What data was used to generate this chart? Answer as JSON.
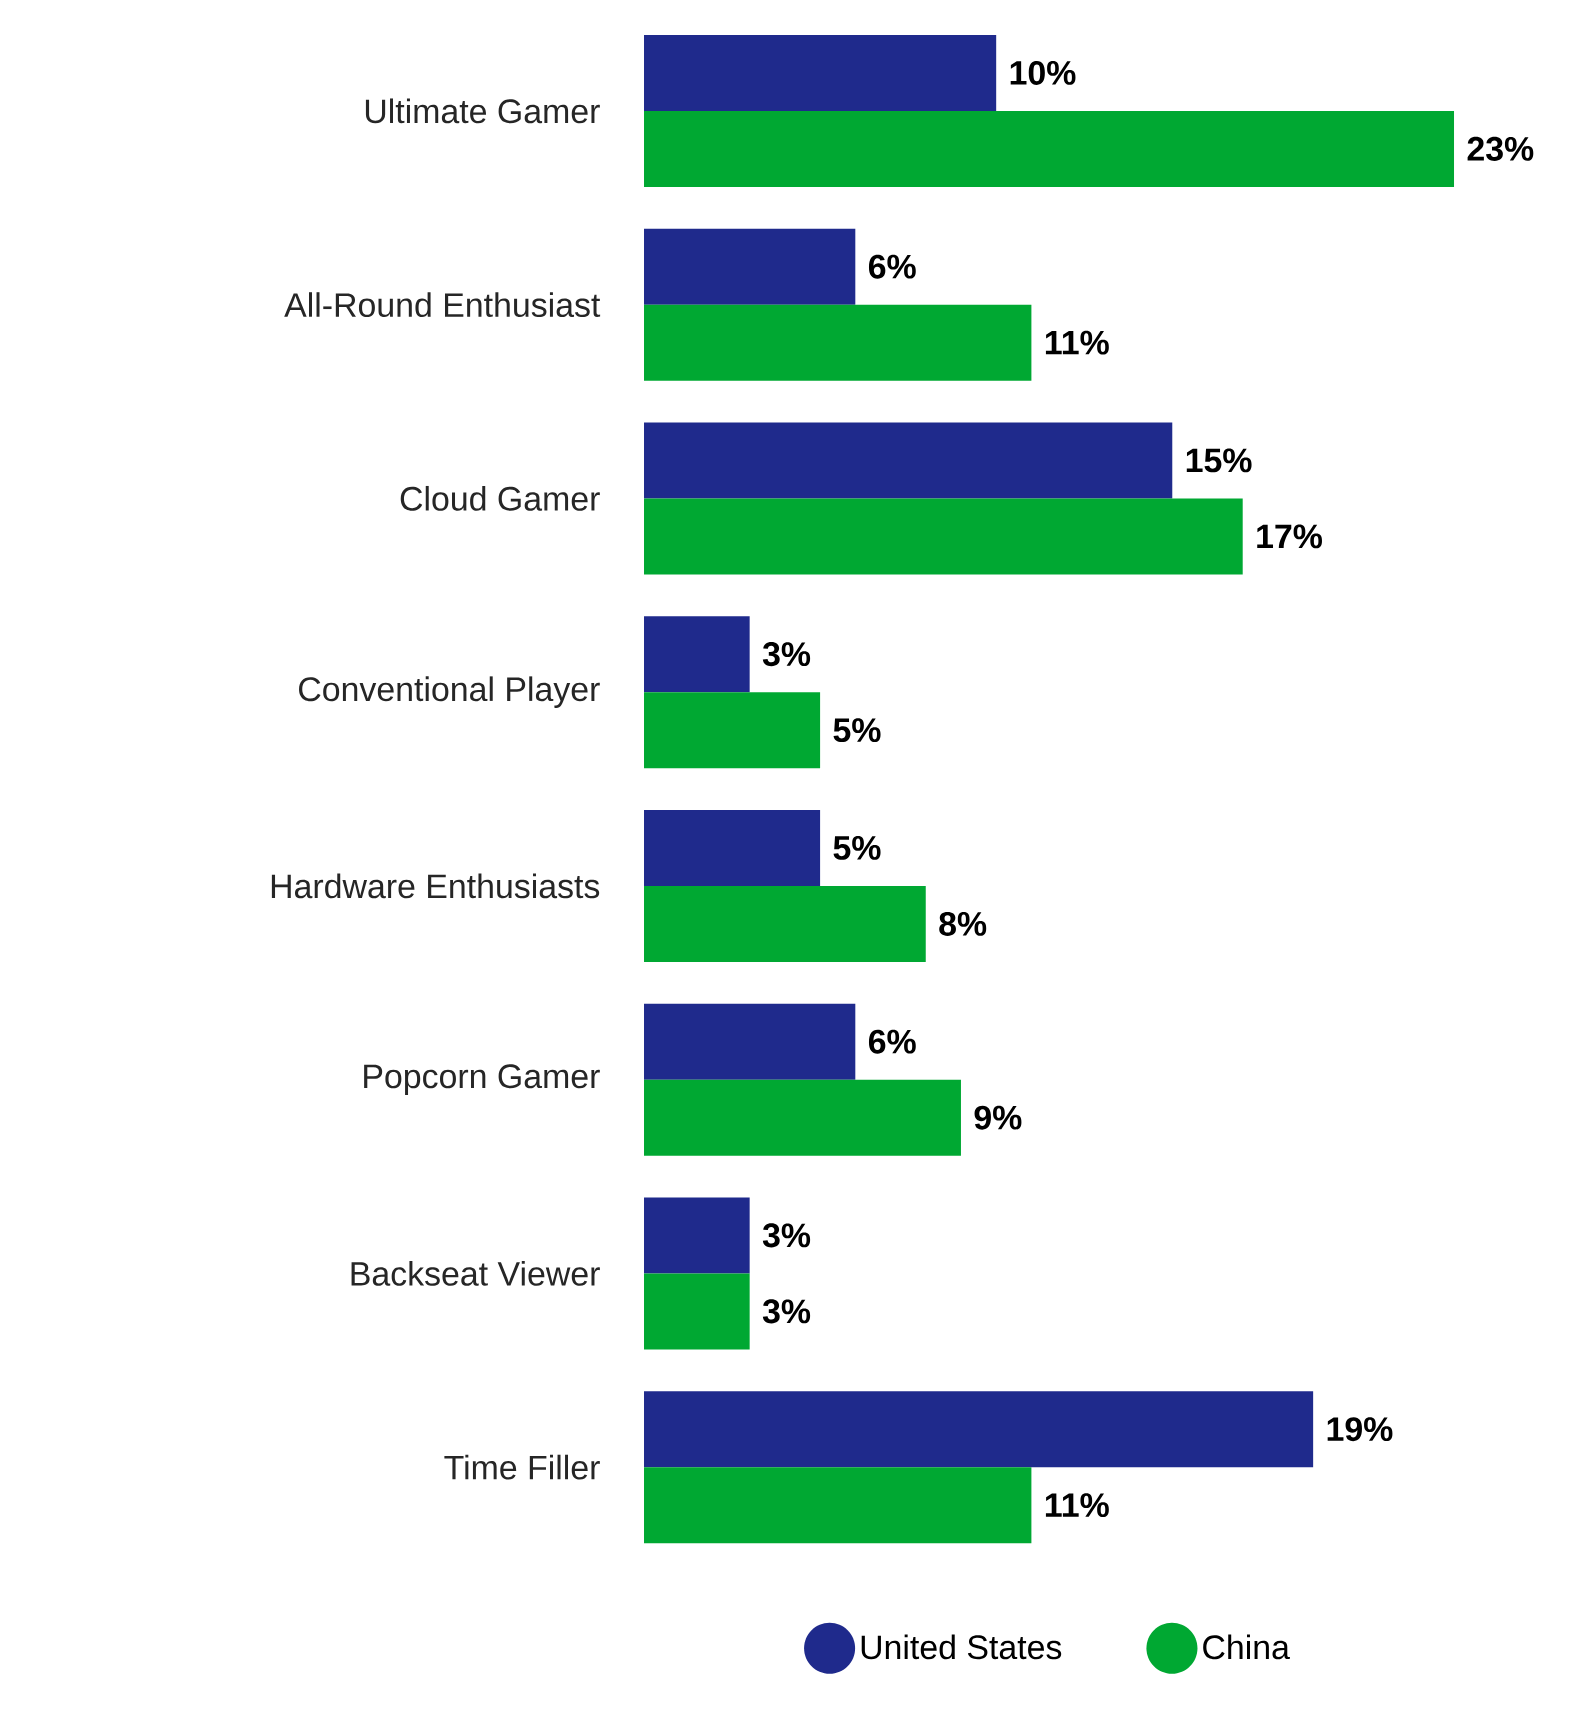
{
  "chart_data": {
    "type": "bar",
    "orientation": "horizontal",
    "categories": [
      "Ultimate Gamer",
      "All-Round Enthusiast",
      "Cloud Gamer",
      "Conventional Player",
      "Hardware Enthusiasts",
      "Popcorn Gamer",
      "Backseat Viewer",
      "Time Filler"
    ],
    "series": [
      {
        "name": "United States",
        "color": "#1f2a8c",
        "values": [
          10,
          6,
          15,
          3,
          5,
          6,
          3,
          19
        ],
        "value_labels": [
          "10%",
          "6%",
          "15%",
          "3%",
          "5%",
          "6%",
          "3%",
          "19%"
        ]
      },
      {
        "name": "China",
        "color": "#00a832",
        "values": [
          23,
          11,
          17,
          5,
          8,
          9,
          3,
          11
        ],
        "value_labels": [
          "23%",
          "11%",
          "17%",
          "5%",
          "8%",
          "9%",
          "3%",
          "11%"
        ]
      }
    ],
    "legend": "bottom",
    "tick_labels": "y",
    "grid": false
  }
}
